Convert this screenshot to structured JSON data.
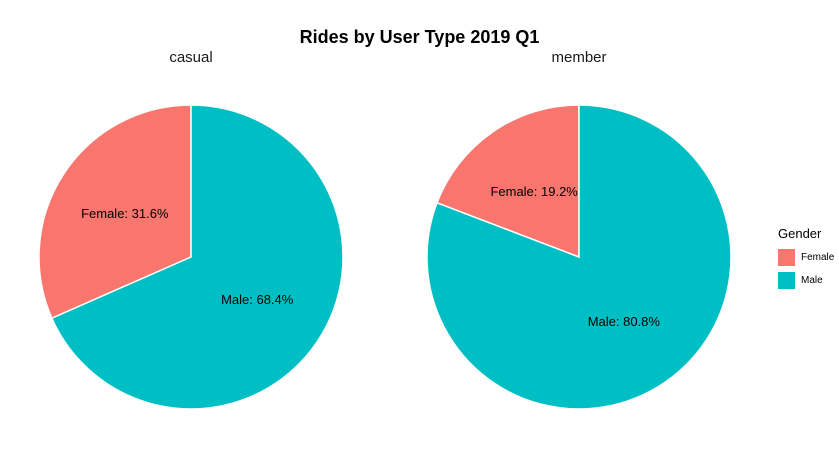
{
  "chart_data": {
    "type": "pie",
    "title": "Rides by User Type 2019 Q1",
    "legend": {
      "title": "Gender",
      "position": "right",
      "entries": [
        {
          "name": "Female",
          "color": "#F8766D"
        },
        {
          "name": "Male",
          "color": "#00BFC4"
        }
      ]
    },
    "facets": [
      {
        "label": "casual",
        "slices": [
          {
            "name": "Female",
            "value": 31.6,
            "text": "Female: 31.6%"
          },
          {
            "name": "Male",
            "value": 68.4,
            "text": "Male: 68.4%"
          }
        ]
      },
      {
        "label": "member",
        "slices": [
          {
            "name": "Female",
            "value": 19.2,
            "text": "Female: 19.2%"
          },
          {
            "name": "Male",
            "value": 80.8,
            "text": "Male: 80.8%"
          }
        ]
      }
    ]
  }
}
